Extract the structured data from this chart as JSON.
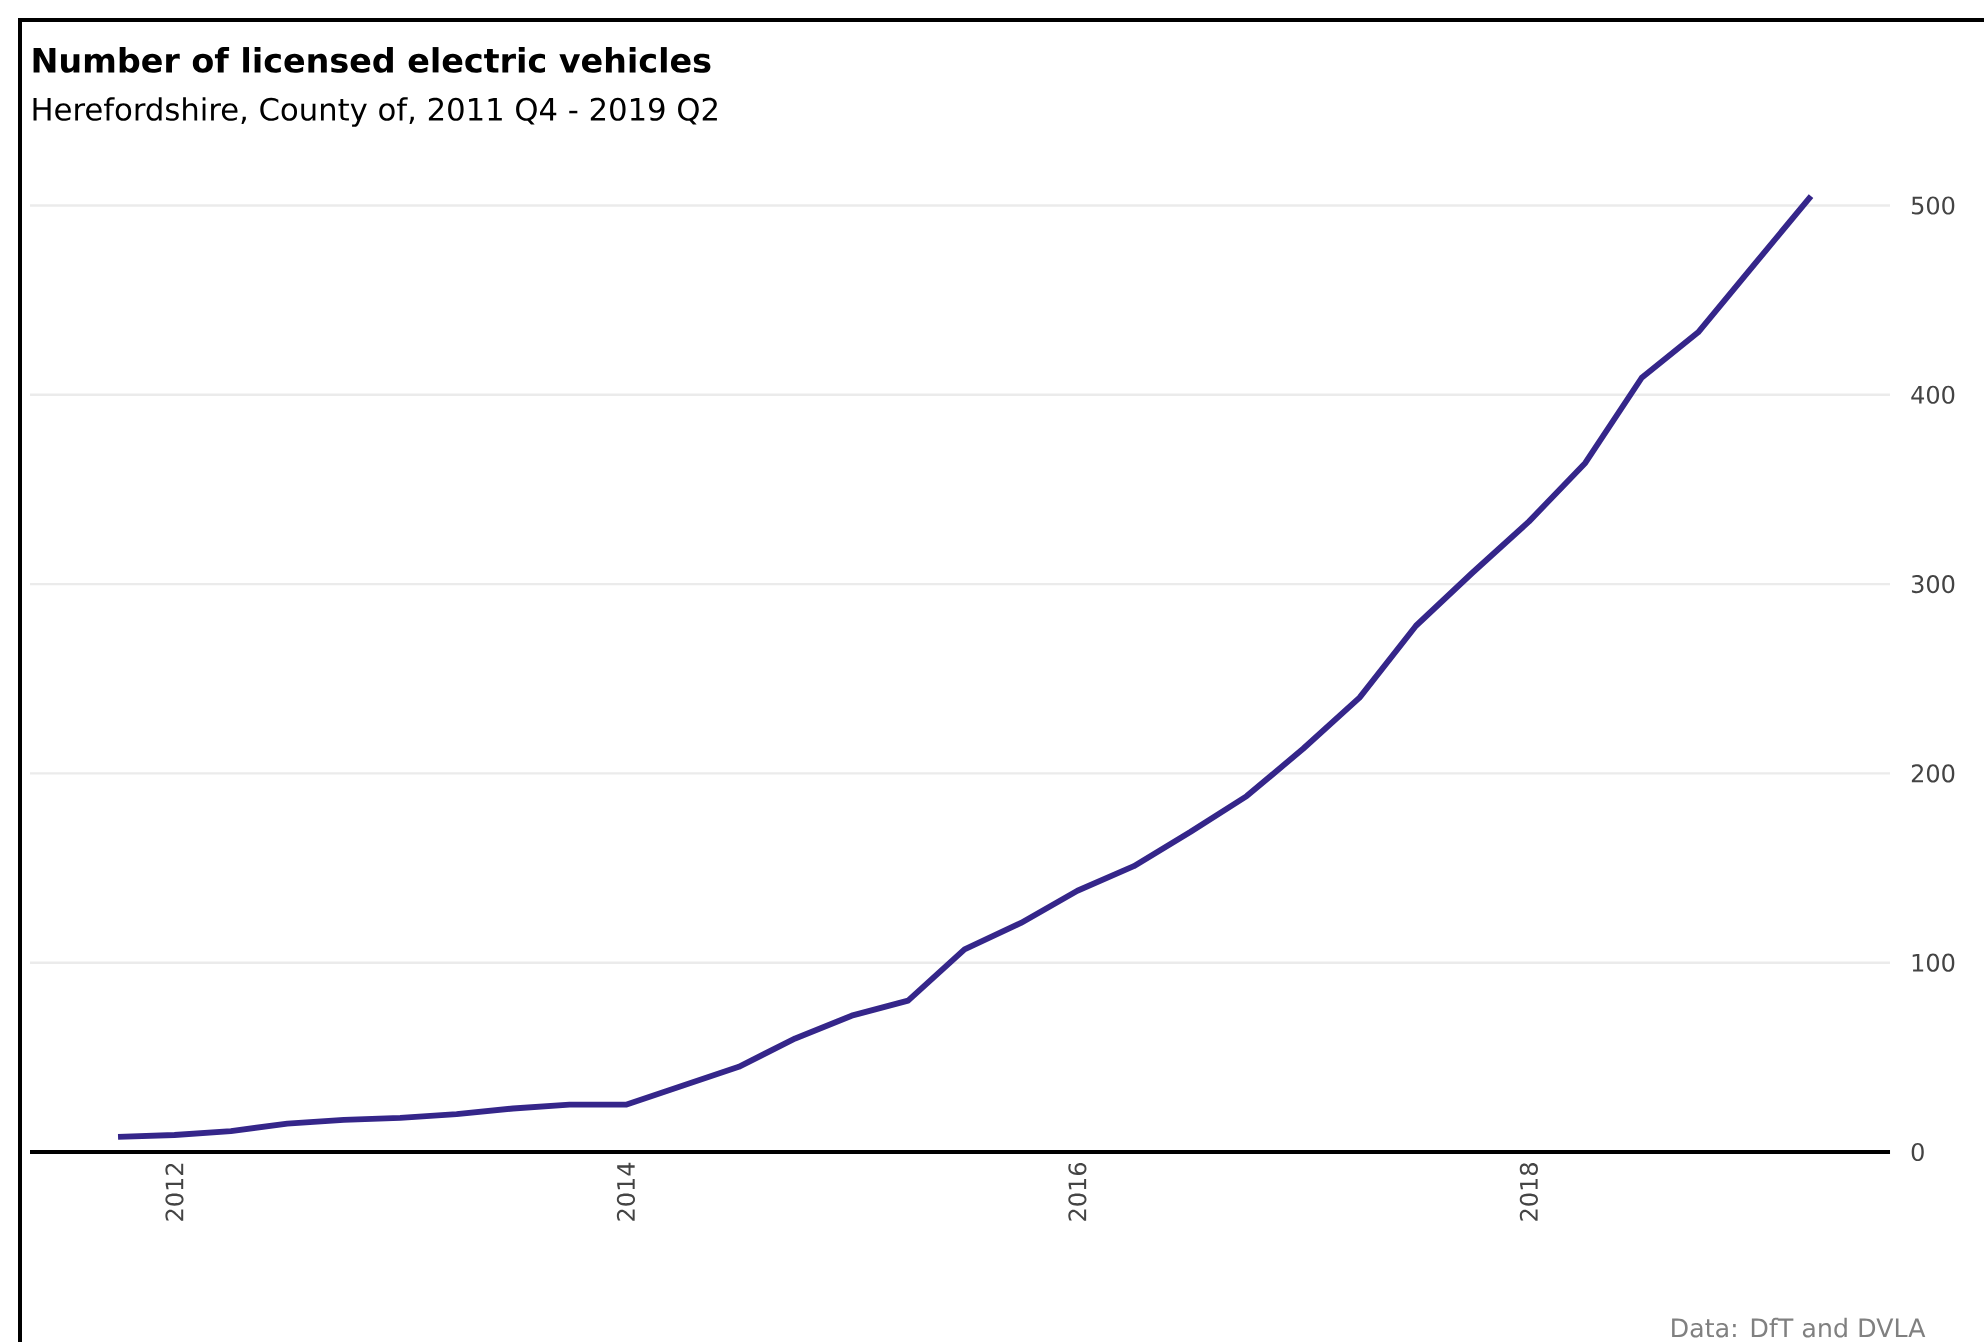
{
  "chart_data": {
    "type": "line",
    "title": "Number of licensed electric vehicles",
    "subtitle": "Herefordshire, County of, 2011 Q4 - 2019 Q2",
    "x": [
      "2011-10",
      "2012-01",
      "2012-04",
      "2012-07",
      "2012-10",
      "2013-01",
      "2013-04",
      "2013-07",
      "2013-10",
      "2014-01",
      "2014-04",
      "2014-07",
      "2014-10",
      "2015-01",
      "2015-04",
      "2015-07",
      "2015-10",
      "2016-01",
      "2016-04",
      "2016-07",
      "2016-10",
      "2017-01",
      "2017-04",
      "2017-07",
      "2017-10",
      "2018-01",
      "2018-04",
      "2018-07",
      "2018-10",
      "2019-01",
      "2019-04"
    ],
    "series": [
      {
        "color": "#35268a",
        "values": [
          8,
          9,
          11,
          15,
          17,
          18,
          20,
          23,
          25,
          25,
          35,
          45,
          60,
          72,
          80,
          107,
          121,
          138,
          151,
          169,
          188,
          213,
          240,
          278,
          306,
          333,
          364,
          409,
          433,
          469,
          505
        ]
      }
    ],
    "xlim": [
      "2011-05-10",
      "2019-08-07"
    ],
    "xticks": [
      "2012",
      "2014",
      "2016",
      "2018"
    ],
    "ylim": [
      0,
      598
    ],
    "yticks": [
      0,
      100,
      200,
      300,
      400,
      500
    ],
    "grid": "y",
    "annotations": [
      "Data: DfT and DVLA"
    ]
  }
}
